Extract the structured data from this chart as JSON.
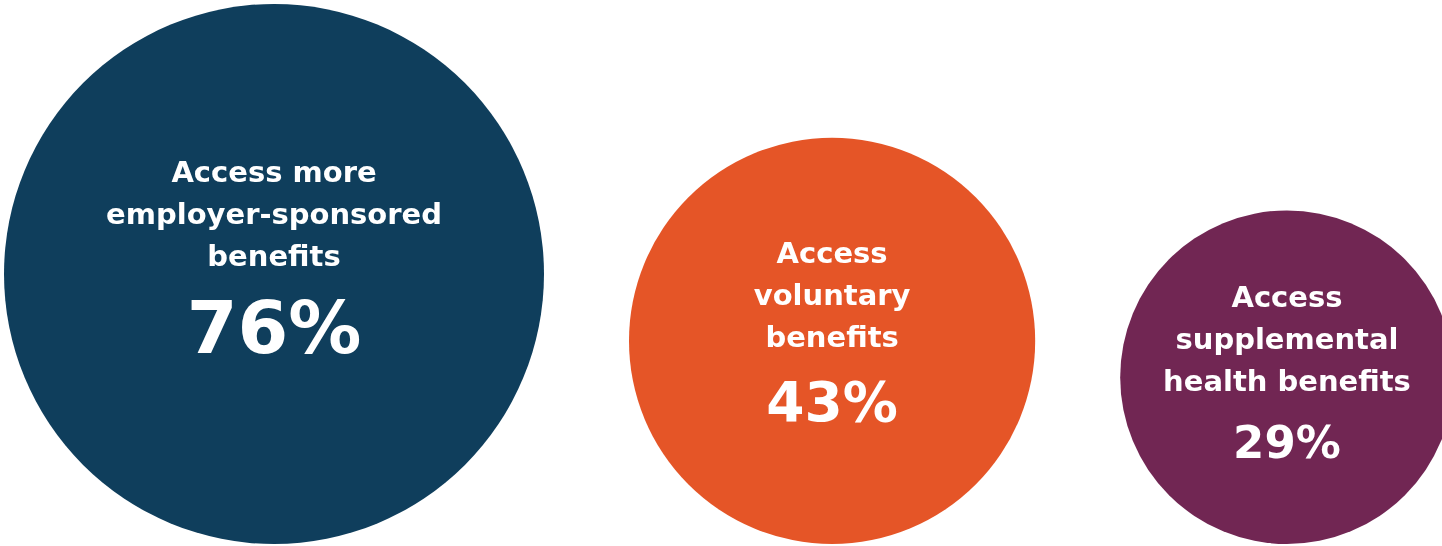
{
  "chart_data": {
    "type": "other",
    "categories": [
      "Access more\nemployer-sponsored\nbenefits",
      "Access\nvoluntary\nbenefits",
      "Access\nsupplemental\nhealth benefits"
    ],
    "values": [
      76,
      43,
      29
    ],
    "value_labels": [
      "76%",
      "43%",
      "29%"
    ],
    "colors": [
      "#0f3e5c",
      "#e55527",
      "#712653"
    ]
  }
}
